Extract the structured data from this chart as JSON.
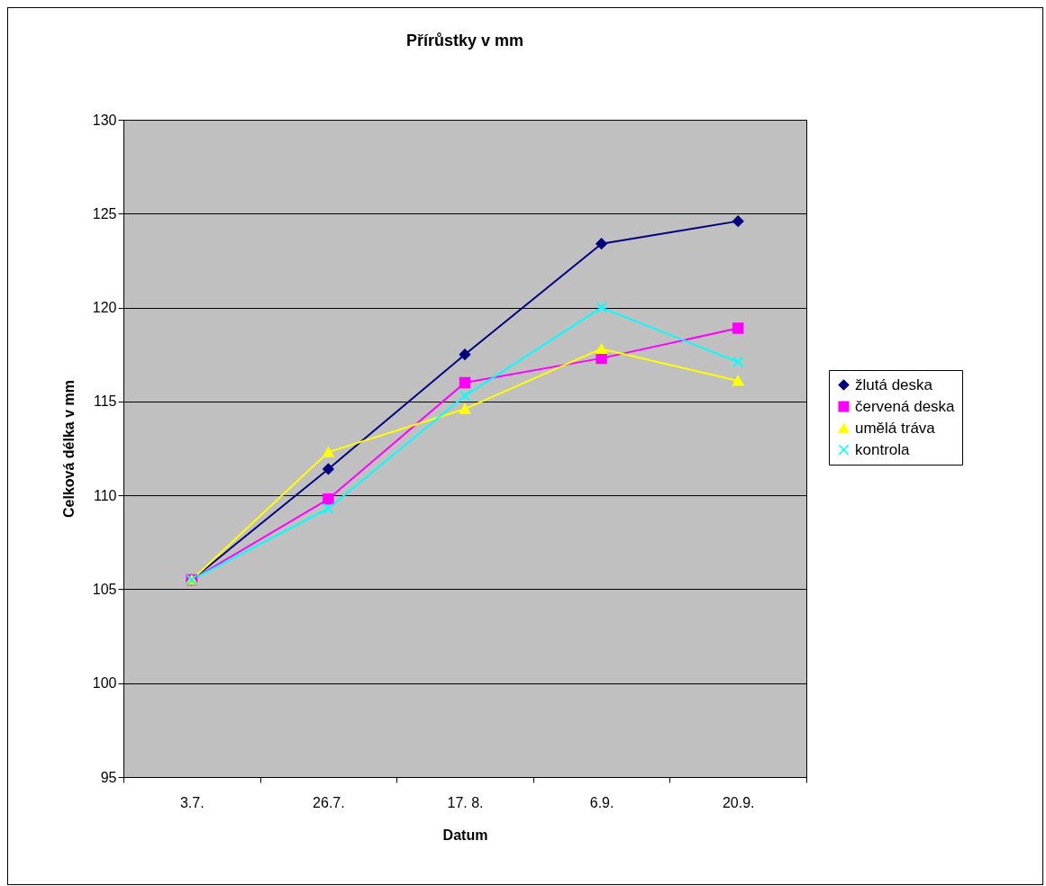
{
  "chart_data": {
    "type": "line",
    "title": "Přírůstky v mm",
    "xlabel": "Datum",
    "ylabel": "Celková délka v mm",
    "categories": [
      "3.7.",
      "26.7.",
      "17. 8.",
      "6.9.",
      "20.9."
    ],
    "series": [
      {
        "name": "žlutá deska",
        "color": "#000080",
        "marker": "diamond",
        "values": [
          105.5,
          111.4,
          117.5,
          123.4,
          124.6
        ]
      },
      {
        "name": "červená deska",
        "color": "#ff00ff",
        "marker": "square",
        "values": [
          105.5,
          109.8,
          116.0,
          117.3,
          118.9
        ]
      },
      {
        "name": "umělá tráva",
        "color": "#ffff00",
        "marker": "triangle",
        "values": [
          105.5,
          112.3,
          114.6,
          117.8,
          116.1
        ]
      },
      {
        "name": "kontrola",
        "color": "#00ffff",
        "marker": "cross",
        "values": [
          105.5,
          109.3,
          115.3,
          120.0,
          117.1
        ]
      }
    ],
    "ylim": [
      95,
      130
    ],
    "yticks": [
      95,
      100,
      105,
      110,
      115,
      120,
      125,
      130
    ],
    "grid": "y",
    "legend": "right"
  }
}
